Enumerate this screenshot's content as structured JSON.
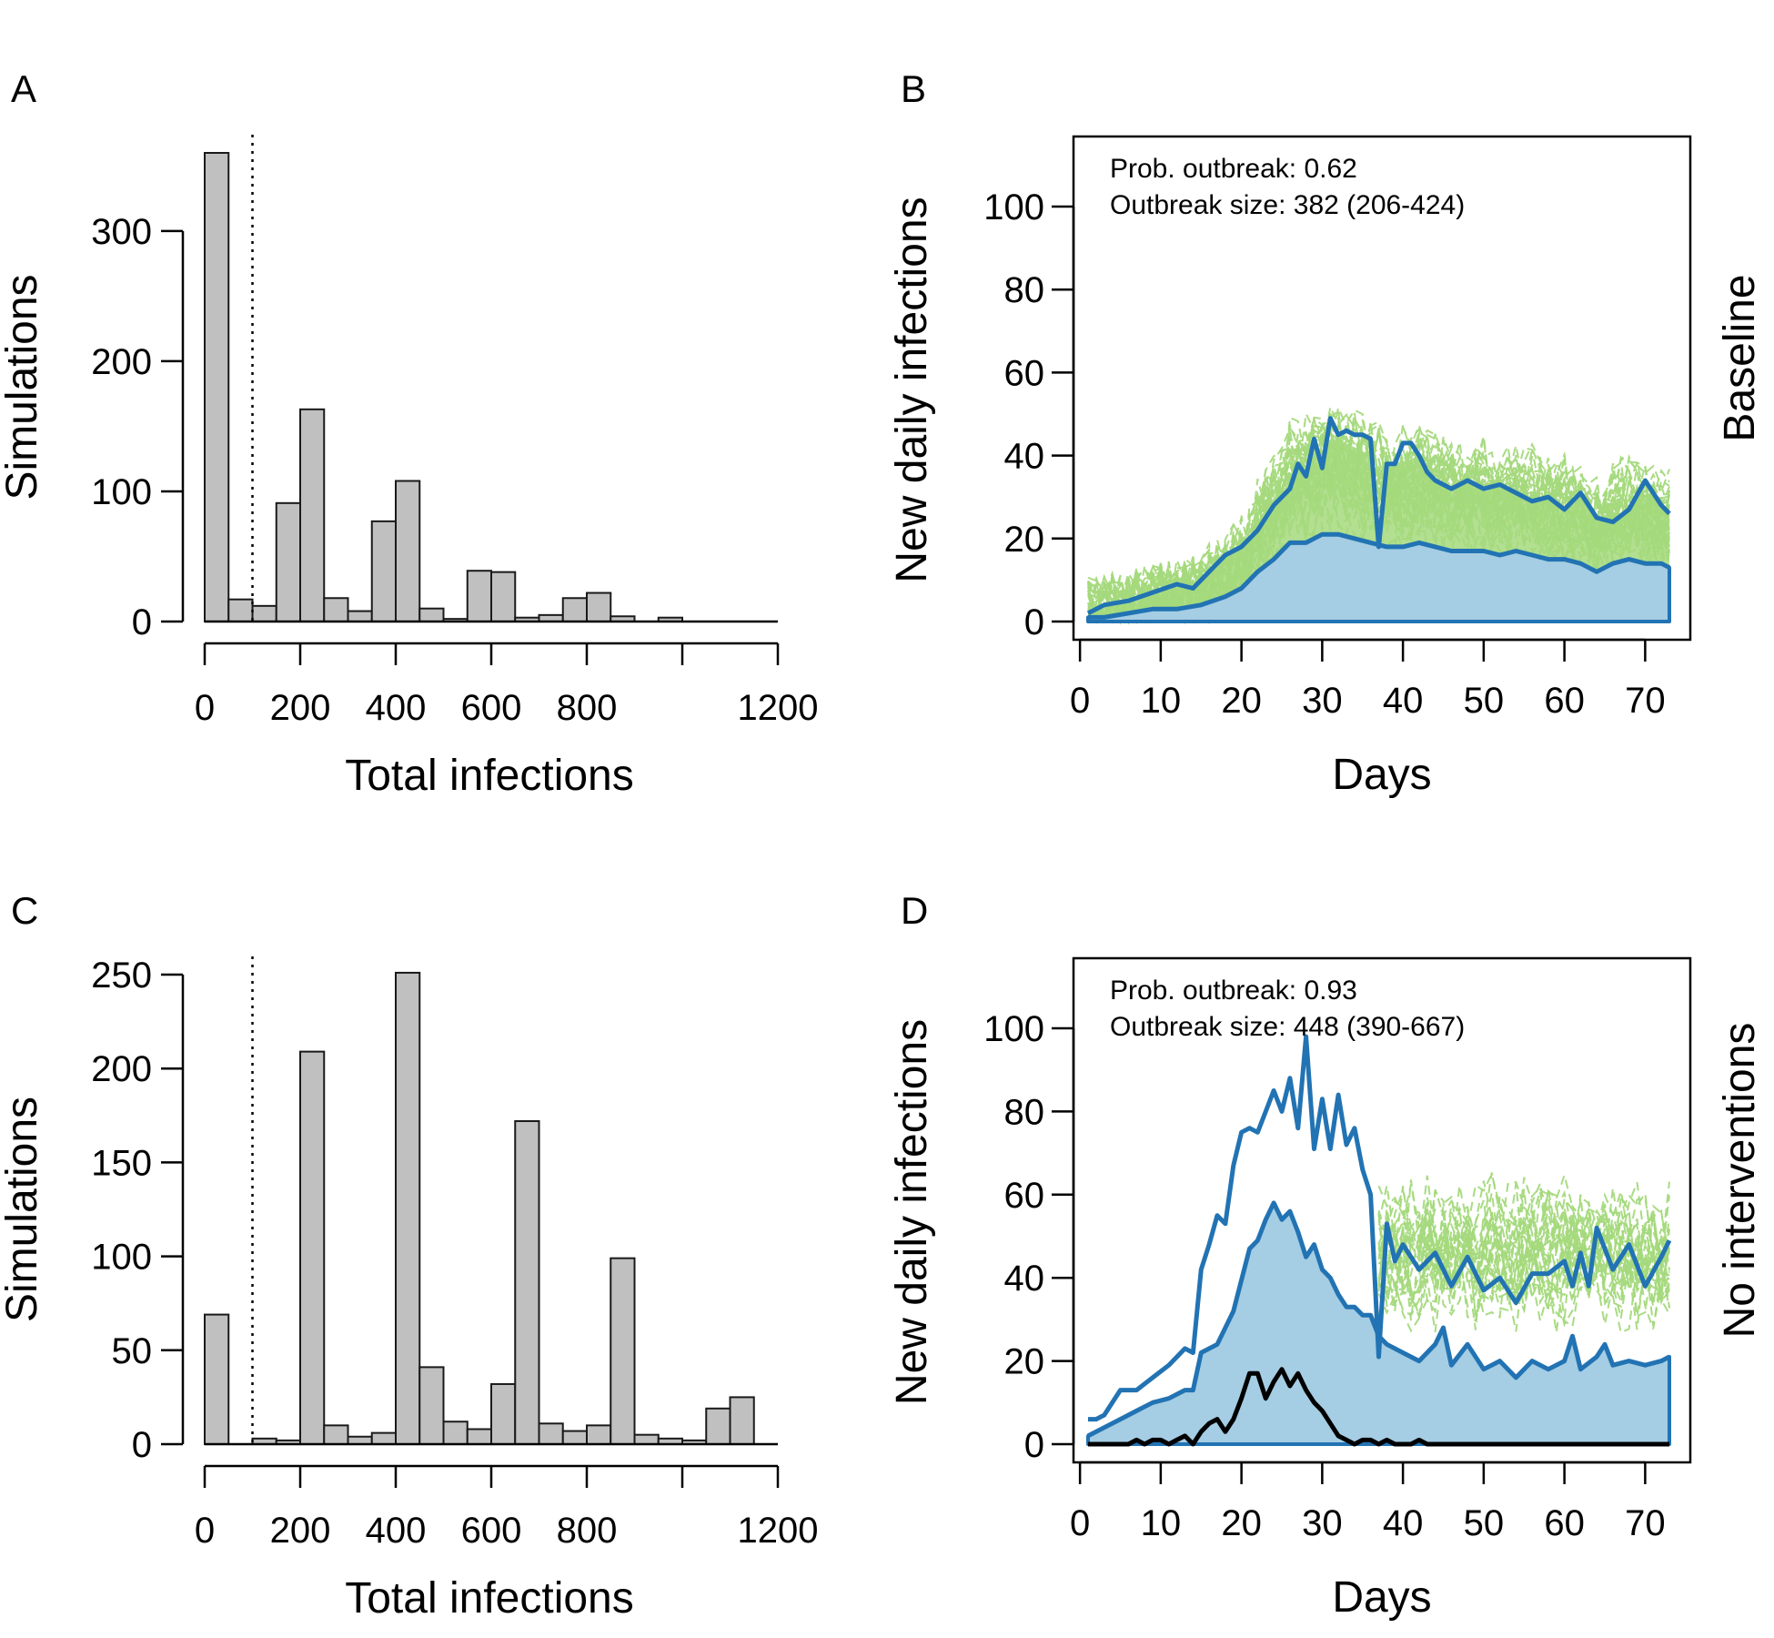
{
  "colors": {
    "bar_fill": "#c0c0c0",
    "bar_stroke": "#1a1a1a",
    "sim_lines": "#a4d97c",
    "band_fill": "#a5cde3",
    "band_line": "#2273b3",
    "black_line": "#000000"
  },
  "chart_data": [
    {
      "id": "A",
      "type": "bar",
      "panel_label": "A",
      "xlabel": "Total infections",
      "ylabel": "Simulations",
      "xlim": [
        0,
        1200
      ],
      "ylim": [
        0,
        360
      ],
      "xticks": [
        0,
        200,
        400,
        600,
        800,
        1000,
        1200
      ],
      "xtick_labels": [
        "0",
        "200",
        "400",
        "600",
        "800",
        "",
        "1200"
      ],
      "yticks": [
        0,
        100,
        200,
        300
      ],
      "ytick_labels": [
        "0",
        "100",
        "200",
        "300"
      ],
      "bin_width": 50,
      "bin_starts": [
        0,
        50,
        100,
        150,
        200,
        250,
        300,
        350,
        400,
        450,
        500,
        550,
        600,
        650,
        700,
        750,
        800,
        850,
        900,
        950
      ],
      "values": [
        360,
        17,
        12,
        91,
        163,
        18,
        8,
        77,
        108,
        10,
        2,
        39,
        38,
        3,
        5,
        18,
        22,
        4,
        0,
        3
      ],
      "threshold_line": 100
    },
    {
      "id": "B",
      "type": "line",
      "panel_label": "B",
      "xlabel": "Days",
      "ylabel": "New daily infections",
      "xlim": [
        1,
        73
      ],
      "ylim": [
        0,
        110
      ],
      "xticks": [
        0,
        10,
        20,
        30,
        40,
        50,
        60,
        70
      ],
      "xtick_labels": [
        "0",
        "10",
        "20",
        "30",
        "40",
        "50",
        "60",
        "70"
      ],
      "yticks": [
        0,
        20,
        40,
        60,
        80,
        100
      ],
      "ytick_labels": [
        "0",
        "20",
        "40",
        "60",
        "80",
        "100"
      ],
      "annotation": [
        "Prob. outbreak: 0.62",
        "Outbreak size: 382 (206-424)"
      ],
      "side_label": "Baseline",
      "series": [
        {
          "role": "upper",
          "x": [
            1,
            3,
            6,
            9,
            12,
            14,
            16,
            18,
            20,
            22,
            24,
            26,
            27,
            28,
            29,
            30,
            31,
            32,
            33,
            34,
            35,
            36,
            37,
            38,
            39,
            40,
            41,
            42,
            43,
            44,
            46,
            48,
            50,
            52,
            54,
            56,
            58,
            60,
            62,
            64,
            66,
            68,
            70,
            72,
            73
          ],
          "values": [
            2,
            4,
            5,
            7,
            9,
            8,
            12,
            16,
            18,
            22,
            28,
            32,
            38,
            35,
            44,
            37,
            49,
            45,
            46,
            45,
            45,
            44,
            18,
            38,
            38,
            43,
            43,
            40,
            36,
            34,
            32,
            34,
            32,
            33,
            31,
            29,
            30,
            27,
            31,
            25,
            24,
            27,
            34,
            28,
            26
          ]
        },
        {
          "role": "median",
          "x": [
            1,
            3,
            6,
            9,
            12,
            15,
            18,
            20,
            22,
            24,
            26,
            28,
            30,
            32,
            34,
            36,
            38,
            40,
            42,
            44,
            46,
            48,
            50,
            52,
            54,
            56,
            58,
            60,
            62,
            64,
            66,
            68,
            70,
            72,
            73
          ],
          "values": [
            1,
            1,
            2,
            3,
            3,
            4,
            6,
            8,
            12,
            15,
            19,
            19,
            21,
            21,
            20,
            19,
            18,
            18,
            19,
            18,
            17,
            17,
            17,
            16,
            17,
            16,
            15,
            15,
            14,
            12,
            14,
            15,
            14,
            14,
            13
          ]
        }
      ]
    },
    {
      "id": "C",
      "type": "bar",
      "panel_label": "C",
      "xlabel": "Total infections",
      "ylabel": "Simulations",
      "xlim": [
        0,
        1200
      ],
      "ylim": [
        0,
        250
      ],
      "xticks": [
        0,
        200,
        400,
        600,
        800,
        1000,
        1200
      ],
      "xtick_labels": [
        "0",
        "200",
        "400",
        "600",
        "800",
        "",
        "1200"
      ],
      "yticks": [
        0,
        50,
        100,
        150,
        200,
        250
      ],
      "ytick_labels": [
        "0",
        "50",
        "100",
        "150",
        "200",
        "250"
      ],
      "bin_width": 50,
      "bin_starts": [
        0,
        50,
        100,
        150,
        200,
        250,
        300,
        350,
        400,
        450,
        500,
        550,
        600,
        650,
        700,
        750,
        800,
        850,
        900,
        950,
        1000,
        1050,
        1100
      ],
      "values": [
        69,
        0,
        3,
        2,
        209,
        10,
        4,
        6,
        251,
        41,
        12,
        8,
        32,
        172,
        11,
        7,
        10,
        99,
        5,
        3,
        2,
        19,
        25
      ],
      "threshold_line": 100
    },
    {
      "id": "D",
      "type": "line",
      "panel_label": "D",
      "xlabel": "Days",
      "ylabel": "New daily infections",
      "xlim": [
        1,
        73
      ],
      "ylim": [
        0,
        110
      ],
      "xticks": [
        0,
        10,
        20,
        30,
        40,
        50,
        60,
        70
      ],
      "xtick_labels": [
        "0",
        "10",
        "20",
        "30",
        "40",
        "50",
        "60",
        "70"
      ],
      "yticks": [
        0,
        20,
        40,
        60,
        80,
        100
      ],
      "ytick_labels": [
        "0",
        "20",
        "40",
        "60",
        "80",
        "100"
      ],
      "annotation": [
        "Prob. outbreak: 0.93",
        "Outbreak size: 448 (390-667)"
      ],
      "side_label": "No interventions",
      "series": [
        {
          "role": "upper",
          "x": [
            1,
            2,
            3,
            5,
            7,
            9,
            11,
            13,
            14,
            15,
            16,
            17,
            18,
            19,
            20,
            21,
            22,
            23,
            24,
            25,
            26,
            27,
            28,
            29,
            30,
            31,
            32,
            33,
            34,
            35,
            36,
            37,
            38,
            39,
            40,
            42,
            44,
            46,
            48,
            50,
            52,
            54,
            56,
            58,
            60,
            61,
            62,
            63,
            64,
            66,
            68,
            70,
            72,
            73
          ],
          "values": [
            6,
            6,
            7,
            13,
            13,
            16,
            19,
            23,
            22,
            42,
            48,
            55,
            53,
            67,
            75,
            76,
            75,
            80,
            85,
            80,
            88,
            76,
            98,
            71,
            83,
            71,
            84,
            72,
            76,
            66,
            60,
            21,
            53,
            44,
            48,
            42,
            46,
            38,
            45,
            37,
            40,
            34,
            41,
            41,
            44,
            38,
            46,
            38,
            52,
            42,
            48,
            38,
            45,
            49
          ]
        },
        {
          "role": "median",
          "x": [
            1,
            3,
            5,
            7,
            9,
            11,
            13,
            14,
            15,
            17,
            19,
            21,
            22,
            23,
            24,
            25,
            26,
            27,
            28,
            29,
            30,
            31,
            32,
            33,
            34,
            35,
            36,
            37,
            38,
            40,
            42,
            44,
            45,
            46,
            48,
            50,
            52,
            54,
            56,
            58,
            60,
            61,
            62,
            64,
            65,
            66,
            68,
            70,
            72,
            73
          ],
          "values": [
            2,
            4,
            6,
            8,
            10,
            11,
            13,
            13,
            22,
            24,
            32,
            47,
            49,
            54,
            58,
            54,
            56,
            51,
            45,
            48,
            42,
            40,
            36,
            33,
            33,
            31,
            31,
            26,
            24,
            22,
            20,
            24,
            28,
            19,
            24,
            18,
            20,
            16,
            20,
            18,
            20,
            26,
            18,
            21,
            24,
            19,
            20,
            19,
            20,
            21
          ]
        },
        {
          "role": "example",
          "x": [
            1,
            5,
            6,
            7,
            8,
            9,
            10,
            11,
            12,
            13,
            14,
            15,
            16,
            17,
            18,
            19,
            20,
            21,
            22,
            23,
            24,
            25,
            26,
            27,
            28,
            29,
            30,
            31,
            32,
            33,
            34,
            35,
            36,
            37,
            38,
            39,
            40,
            41,
            42,
            43,
            44,
            46,
            50,
            73
          ],
          "values": [
            0,
            0,
            0,
            1,
            0,
            1,
            1,
            0,
            1,
            2,
            0,
            3,
            5,
            6,
            3,
            6,
            11,
            17,
            17,
            11,
            15,
            18,
            14,
            17,
            13,
            10,
            8,
            5,
            2,
            1,
            0,
            1,
            1,
            0,
            1,
            0,
            0,
            0,
            1,
            0,
            0,
            0,
            0,
            0
          ]
        }
      ]
    }
  ]
}
